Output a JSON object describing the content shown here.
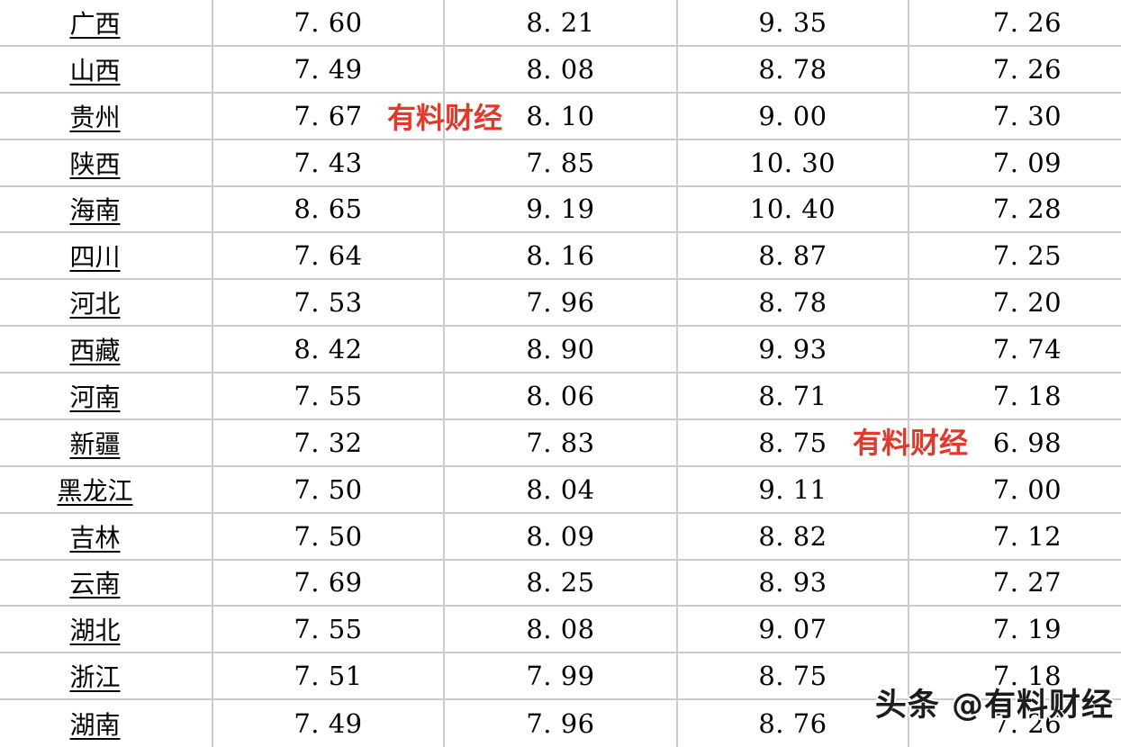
{
  "table": {
    "grid_line_color": "#cbcbcb",
    "text_color": "#000000",
    "rows": [
      {
        "province": "广西",
        "values": [
          "7.60",
          "8.21",
          "9.35",
          "7.26"
        ]
      },
      {
        "province": "山西",
        "values": [
          "7.49",
          "8.08",
          "8.78",
          "7.26"
        ]
      },
      {
        "province": "贵州",
        "values": [
          "7.67",
          "8.10",
          "9.00",
          "7.30"
        ]
      },
      {
        "province": "陕西",
        "values": [
          "7.43",
          "7.85",
          "10.30",
          "7.09"
        ]
      },
      {
        "province": "海南",
        "values": [
          "8.65",
          "9.19",
          "10.40",
          "7.28"
        ]
      },
      {
        "province": "四川",
        "values": [
          "7.64",
          "8.16",
          "8.87",
          "7.25"
        ]
      },
      {
        "province": "河北",
        "values": [
          "7.53",
          "7.96",
          "8.78",
          "7.20"
        ]
      },
      {
        "province": "西藏",
        "values": [
          "8.42",
          "8.90",
          "9.93",
          "7.74"
        ]
      },
      {
        "province": "河南",
        "values": [
          "7.55",
          "8.06",
          "8.71",
          "7.18"
        ]
      },
      {
        "province": "新疆",
        "values": [
          "7.32",
          "7.83",
          "8.75",
          "6.98"
        ]
      },
      {
        "province": "黑龙江",
        "values": [
          "7.50",
          "8.04",
          "9.11",
          "7.00"
        ]
      },
      {
        "province": "吉林",
        "values": [
          "7.50",
          "8.09",
          "8.82",
          "7.12"
        ]
      },
      {
        "province": "云南",
        "values": [
          "7.69",
          "8.25",
          "8.93",
          "7.27"
        ]
      },
      {
        "province": "湖北",
        "values": [
          "7.55",
          "8.08",
          "9.07",
          "7.19"
        ]
      },
      {
        "province": "浙江",
        "values": [
          "7.51",
          "7.99",
          "8.75",
          "7.18"
        ]
      },
      {
        "province": "湖南",
        "values": [
          "7.49",
          "7.96",
          "8.76",
          "7.26"
        ]
      }
    ]
  },
  "watermarks": {
    "inline": "有料财经",
    "footer": "头条 @有料财经",
    "red_color": "#e1392b"
  }
}
